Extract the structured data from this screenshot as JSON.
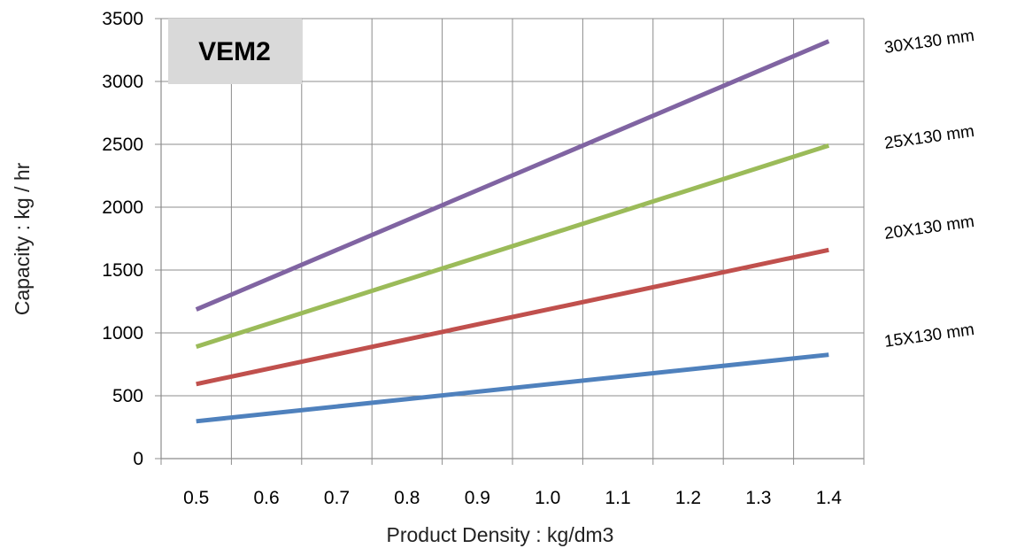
{
  "chart_data": {
    "type": "line",
    "title": "",
    "badge": "VEM2",
    "xlabel": "Product Density : kg/dm3",
    "ylabel": "Capacity : kg / hr",
    "x_ticks": [
      "0.5",
      "0.6",
      "0.7",
      "0.8",
      "0.9",
      "1.0",
      "1.1",
      "1.2",
      "1.3",
      "1.4"
    ],
    "y_ticks": [
      "0",
      "500",
      "1000",
      "1500",
      "2000",
      "2500",
      "3000",
      "3500"
    ],
    "xlim": [
      0.5,
      1.4
    ],
    "ylim": [
      0,
      3500
    ],
    "grid": true,
    "legend": "right",
    "series": [
      {
        "name": "15X130 mm",
        "color": "#4F81BD",
        "points": [
          [
            0.5,
            297
          ],
          [
            1.4,
            826
          ]
        ]
      },
      {
        "name": "20X130 mm",
        "color": "#C0504D",
        "points": [
          [
            0.5,
            593
          ],
          [
            1.4,
            1660
          ]
        ]
      },
      {
        "name": "25X130 mm",
        "color": "#9BBB59",
        "points": [
          [
            0.5,
            890
          ],
          [
            1.4,
            2490
          ]
        ]
      },
      {
        "name": "30X130 mm",
        "color": "#8064A2",
        "points": [
          [
            0.5,
            1186
          ],
          [
            1.4,
            3320
          ]
        ]
      }
    ]
  }
}
